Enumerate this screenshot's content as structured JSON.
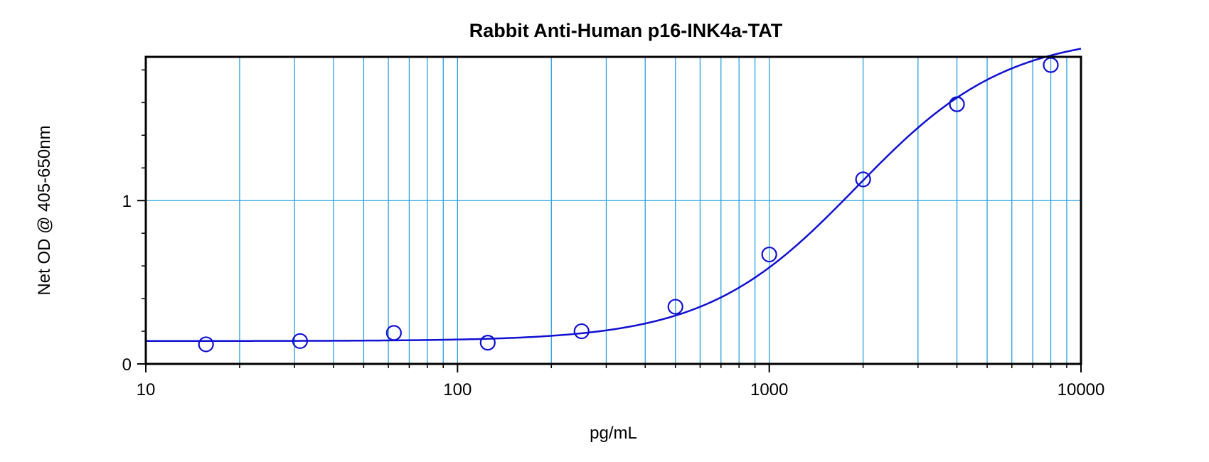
{
  "chart_data": {
    "type": "scatter",
    "title": "Rabbit Anti-Human p16-INK4a-TAT",
    "xlabel": "pg/mL",
    "ylabel": "Net OD @ 405-650nm",
    "x_scale": "log",
    "xlim": [
      10,
      10000
    ],
    "ylim": [
      0,
      1.88
    ],
    "x_ticks": [
      10,
      100,
      1000,
      10000
    ],
    "x_tick_labels": [
      "10",
      "100",
      "1000",
      "10000"
    ],
    "y_ticks": [
      0,
      1
    ],
    "y_tick_labels": [
      "0",
      "1"
    ],
    "grid": true,
    "series": [
      {
        "points": [
          {
            "x": 15.6,
            "y": 0.12
          },
          {
            "x": 31.25,
            "y": 0.14
          },
          {
            "x": 62.5,
            "y": 0.19
          },
          {
            "x": 125,
            "y": 0.13
          },
          {
            "x": 250,
            "y": 0.2
          },
          {
            "x": 500,
            "y": 0.35
          },
          {
            "x": 1000,
            "y": 0.67
          },
          {
            "x": 2000,
            "y": 1.13
          },
          {
            "x": 4000,
            "y": 1.59
          },
          {
            "x": 8000,
            "y": 1.83
          }
        ]
      }
    ],
    "fit_curve": {
      "model": "4PL",
      "bottom": 0.14,
      "top": 2.02,
      "ec50": 1900,
      "hill": 1.8
    },
    "colors": {
      "gridline": "#2aa0e0",
      "curve": "#1010d0",
      "marker": "#1010d0",
      "frame": "#000000"
    }
  }
}
